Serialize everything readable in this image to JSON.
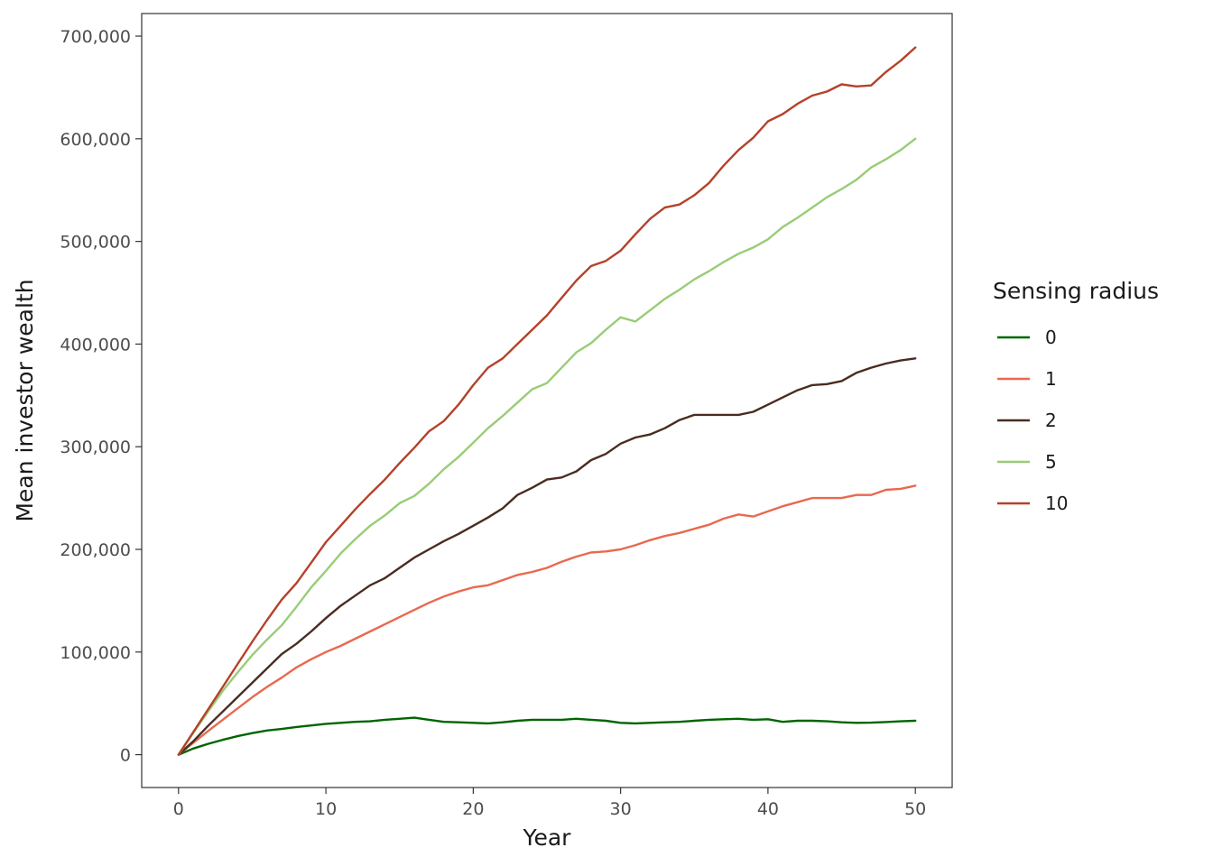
{
  "chart_data": {
    "type": "line",
    "title": "",
    "xlabel": "Year",
    "ylabel": "Mean investor wealth",
    "xlim": [
      -2.5,
      52.5
    ],
    "ylim": [
      -32000,
      722000
    ],
    "x_ticks": [
      0,
      10,
      20,
      30,
      40,
      50
    ],
    "x_tick_labels": [
      "0",
      "10",
      "20",
      "30",
      "40",
      "50"
    ],
    "y_ticks": [
      0,
      100000,
      200000,
      300000,
      400000,
      500000,
      600000,
      700000
    ],
    "y_tick_labels": [
      "0",
      "100,000",
      "200,000",
      "300,000",
      "400,000",
      "500,000",
      "600,000",
      "700,000"
    ],
    "grid": false,
    "legend": {
      "title": "Sensing radius",
      "position": "right"
    },
    "x": [
      0,
      1,
      2,
      3,
      4,
      5,
      6,
      7,
      8,
      9,
      10,
      11,
      12,
      13,
      14,
      15,
      16,
      17,
      18,
      19,
      20,
      21,
      22,
      23,
      24,
      25,
      26,
      27,
      28,
      29,
      30,
      31,
      32,
      33,
      34,
      35,
      36,
      37,
      38,
      39,
      40,
      41,
      42,
      43,
      44,
      45,
      46,
      47,
      48,
      49,
      50
    ],
    "series": [
      {
        "name": "0",
        "color": "#006400",
        "values": [
          0,
          6000,
          10500,
          14500,
          18000,
          21000,
          23500,
          25000,
          27000,
          28500,
          30000,
          31000,
          32000,
          32500,
          34000,
          35000,
          36000,
          34000,
          32000,
          31500,
          31000,
          30500,
          31500,
          33000,
          34000,
          34000,
          34000,
          35000,
          34000,
          33000,
          31000,
          30500,
          31000,
          31500,
          32000,
          33000,
          34000,
          34500,
          35000,
          34000,
          34500,
          32000,
          33000,
          33000,
          32500,
          31500,
          31000,
          31200,
          31800,
          32500,
          33000
        ]
      },
      {
        "name": "1",
        "color": "#e8694f",
        "values": [
          0,
          11500,
          23000,
          34000,
          45000,
          56000,
          66000,
          75000,
          85000,
          93000,
          100000,
          106000,
          113000,
          120000,
          127000,
          134000,
          141000,
          148000,
          154000,
          159000,
          163000,
          165000,
          170000,
          175000,
          178000,
          182000,
          188000,
          193000,
          197000,
          198000,
          200000,
          204000,
          209000,
          213000,
          216000,
          220000,
          224000,
          230000,
          234000,
          232000,
          237000,
          242000,
          246000,
          250000,
          250000,
          250000,
          253000,
          253000,
          258000,
          259000,
          262000
        ]
      },
      {
        "name": "2",
        "color": "#4a2c21",
        "values": [
          0,
          13000,
          28000,
          42000,
          56000,
          70000,
          84000,
          98000,
          108000,
          120000,
          133000,
          145000,
          155000,
          165000,
          172000,
          182000,
          192000,
          200000,
          208000,
          215000,
          223000,
          231000,
          240000,
          253000,
          260000,
          268000,
          270000,
          276000,
          287000,
          293000,
          303000,
          309000,
          312000,
          318000,
          326000,
          331000,
          331000,
          331000,
          331000,
          334000,
          341000,
          348000,
          355000,
          360000,
          361000,
          364000,
          372000,
          377000,
          381000,
          384000,
          386000
        ]
      },
      {
        "name": "5",
        "color": "#99cc77",
        "values": [
          0,
          21000,
          42000,
          62000,
          80000,
          97000,
          112000,
          126000,
          144000,
          163000,
          179000,
          196000,
          210000,
          223000,
          233000,
          245000,
          252000,
          264000,
          278000,
          290000,
          304000,
          318000,
          330000,
          343000,
          356000,
          362000,
          377000,
          392000,
          401000,
          414000,
          426000,
          422000,
          433000,
          444000,
          453000,
          463000,
          471000,
          480000,
          488000,
          494000,
          502000,
          514000,
          523000,
          533000,
          543000,
          551000,
          560000,
          572000,
          580000,
          589000,
          600000
        ]
      },
      {
        "name": "10",
        "color": "#b5412a",
        "values": [
          0,
          22000,
          44000,
          66000,
          88000,
          110000,
          131000,
          151000,
          167000,
          187000,
          207000,
          223000,
          239000,
          254000,
          268000,
          284000,
          299000,
          315000,
          325000,
          341000,
          360000,
          377000,
          386000,
          400000,
          414000,
          428000,
          445000,
          462000,
          476000,
          481000,
          491000,
          507000,
          522000,
          533000,
          536000,
          545000,
          557000,
          574000,
          589000,
          601000,
          617000,
          624000,
          634000,
          642000,
          646000,
          653000,
          651000,
          652000,
          665000,
          676000,
          689000
        ]
      }
    ]
  }
}
